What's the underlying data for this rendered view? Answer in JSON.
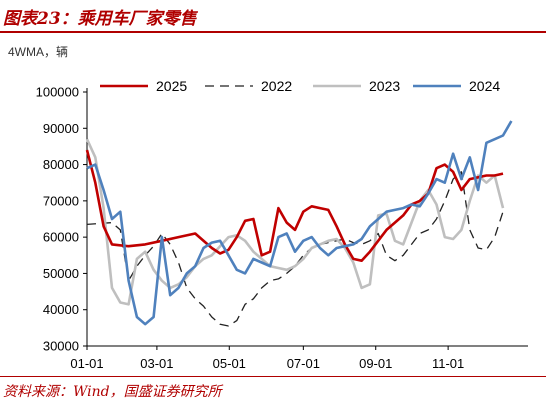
{
  "header": {
    "title": "图表23：乘用车厂家零售"
  },
  "footer": {
    "source": "资料来源：Wind，国盛证券研究所"
  },
  "chart_data": {
    "type": "line",
    "unit_label": "4WMA，辆",
    "ylim": [
      30000,
      100000
    ],
    "yticks": [
      30000,
      40000,
      50000,
      60000,
      70000,
      80000,
      90000,
      100000
    ],
    "xticks": [
      "01-01",
      "03-01",
      "05-01",
      "07-01",
      "09-01",
      "11-01"
    ],
    "xlim_weeks": [
      0,
      53
    ],
    "grid": false,
    "legend": "top",
    "colors": {
      "2025": "#c00000",
      "2022": "#222222",
      "2023": "#bfbfbf",
      "2024": "#4f81bd"
    },
    "series": [
      {
        "name": "2025",
        "style": "solid",
        "points": [
          [
            0,
            84000
          ],
          [
            1,
            75000
          ],
          [
            2,
            63000
          ],
          [
            3,
            58000
          ],
          [
            5,
            57500
          ],
          [
            7,
            58000
          ],
          [
            9,
            59000
          ],
          [
            11,
            60000
          ],
          [
            13,
            61000
          ],
          [
            15,
            57000
          ],
          [
            16,
            55500
          ],
          [
            17,
            56500
          ],
          [
            18,
            60000
          ],
          [
            19,
            64500
          ],
          [
            20,
            65000
          ],
          [
            21,
            55000
          ],
          [
            22,
            56000
          ],
          [
            23,
            68000
          ],
          [
            24,
            64000
          ],
          [
            25,
            62000
          ],
          [
            26,
            67000
          ],
          [
            27,
            68500
          ],
          [
            28,
            68000
          ],
          [
            29,
            67500
          ],
          [
            30,
            63000
          ],
          [
            31,
            58000
          ],
          [
            32,
            54000
          ],
          [
            33,
            53500
          ],
          [
            34,
            56000
          ],
          [
            35,
            59000
          ],
          [
            36,
            62000
          ],
          [
            37,
            64000
          ],
          [
            38,
            66000
          ],
          [
            39,
            69000
          ],
          [
            40,
            70000
          ],
          [
            41,
            72000
          ],
          [
            42,
            79000
          ],
          [
            43,
            80000
          ],
          [
            44,
            78000
          ],
          [
            45,
            73000
          ],
          [
            46,
            76000
          ],
          [
            47,
            76500
          ],
          [
            48,
            77000
          ],
          [
            49,
            77000
          ],
          [
            50,
            77500
          ]
        ]
      },
      {
        "name": "2022",
        "style": "dashed",
        "points": [
          [
            0,
            63500
          ],
          [
            3,
            64000
          ],
          [
            4,
            62000
          ],
          [
            5,
            48000
          ],
          [
            6,
            52000
          ],
          [
            7,
            55000
          ],
          [
            8,
            57500
          ],
          [
            9,
            61000
          ],
          [
            10,
            58000
          ],
          [
            11,
            53000
          ],
          [
            12,
            46000
          ],
          [
            13,
            43000
          ],
          [
            14,
            41000
          ],
          [
            15,
            38000
          ],
          [
            16,
            36000
          ],
          [
            17,
            35500
          ],
          [
            18,
            37000
          ],
          [
            19,
            41500
          ],
          [
            20,
            43000
          ],
          [
            21,
            46000
          ],
          [
            22,
            48000
          ],
          [
            23,
            48500
          ],
          [
            24,
            50000
          ],
          [
            25,
            52000
          ],
          [
            26,
            55000
          ],
          [
            27,
            57000
          ],
          [
            28,
            58000
          ],
          [
            29,
            58500
          ],
          [
            30,
            59000
          ],
          [
            31,
            59500
          ],
          [
            32,
            58500
          ],
          [
            33,
            58000
          ],
          [
            34,
            59000
          ],
          [
            35,
            61000
          ],
          [
            36,
            55000
          ],
          [
            37,
            53500
          ],
          [
            38,
            55000
          ],
          [
            39,
            58000
          ],
          [
            40,
            61000
          ],
          [
            41,
            62000
          ],
          [
            42,
            65000
          ],
          [
            43,
            70000
          ],
          [
            44,
            76000
          ],
          [
            45,
            78000
          ],
          [
            46,
            62000
          ],
          [
            47,
            57000
          ],
          [
            48,
            56500
          ],
          [
            49,
            60000
          ],
          [
            50,
            67000
          ]
        ]
      },
      {
        "name": "2023",
        "style": "solid",
        "points": [
          [
            0,
            87000
          ],
          [
            1,
            82000
          ],
          [
            2,
            68000
          ],
          [
            3,
            46000
          ],
          [
            4,
            42000
          ],
          [
            5,
            41500
          ],
          [
            6,
            54000
          ],
          [
            7,
            56000
          ],
          [
            8,
            51000
          ],
          [
            9,
            48000
          ],
          [
            10,
            46000
          ],
          [
            11,
            47000
          ],
          [
            12,
            49000
          ],
          [
            13,
            52000
          ],
          [
            14,
            54000
          ],
          [
            15,
            55000
          ],
          [
            16,
            57500
          ],
          [
            17,
            60000
          ],
          [
            18,
            60500
          ],
          [
            19,
            59000
          ],
          [
            20,
            56000
          ],
          [
            21,
            54000
          ],
          [
            22,
            52000
          ],
          [
            23,
            51500
          ],
          [
            24,
            51000
          ],
          [
            25,
            52000
          ],
          [
            26,
            54000
          ],
          [
            27,
            57000
          ],
          [
            28,
            58000
          ],
          [
            29,
            59000
          ],
          [
            30,
            59500
          ],
          [
            31,
            57000
          ],
          [
            32,
            53000
          ],
          [
            33,
            46000
          ],
          [
            34,
            47000
          ],
          [
            35,
            66000
          ],
          [
            36,
            66500
          ],
          [
            37,
            59000
          ],
          [
            38,
            58000
          ],
          [
            39,
            64000
          ],
          [
            40,
            70000
          ],
          [
            41,
            73000
          ],
          [
            42,
            69000
          ],
          [
            43,
            60000
          ],
          [
            44,
            59500
          ],
          [
            45,
            62000
          ],
          [
            46,
            70000
          ],
          [
            47,
            77000
          ],
          [
            48,
            75000
          ],
          [
            49,
            77000
          ],
          [
            50,
            68000
          ]
        ]
      },
      {
        "name": "2024",
        "style": "solid",
        "points": [
          [
            0,
            79000
          ],
          [
            1,
            80000
          ],
          [
            2,
            73000
          ],
          [
            3,
            65000
          ],
          [
            4,
            67000
          ],
          [
            5,
            48000
          ],
          [
            6,
            38000
          ],
          [
            7,
            36000
          ],
          [
            8,
            38000
          ],
          [
            9,
            60000
          ],
          [
            10,
            44000
          ],
          [
            11,
            46000
          ],
          [
            12,
            50000
          ],
          [
            13,
            52000
          ],
          [
            14,
            57000
          ],
          [
            15,
            58500
          ],
          [
            16,
            59000
          ],
          [
            17,
            55000
          ],
          [
            18,
            51000
          ],
          [
            19,
            50000
          ],
          [
            20,
            54000
          ],
          [
            21,
            53000
          ],
          [
            22,
            52000
          ],
          [
            23,
            60000
          ],
          [
            24,
            61000
          ],
          [
            25,
            56000
          ],
          [
            26,
            59000
          ],
          [
            27,
            60000
          ],
          [
            28,
            57000
          ],
          [
            29,
            55000
          ],
          [
            30,
            57000
          ],
          [
            31,
            57500
          ],
          [
            32,
            58000
          ],
          [
            33,
            59500
          ],
          [
            34,
            63000
          ],
          [
            35,
            65000
          ],
          [
            36,
            67000
          ],
          [
            37,
            67500
          ],
          [
            38,
            68000
          ],
          [
            39,
            69000
          ],
          [
            40,
            68500
          ],
          [
            41,
            72000
          ],
          [
            42,
            76000
          ],
          [
            43,
            75000
          ],
          [
            44,
            83000
          ],
          [
            45,
            76000
          ],
          [
            46,
            82000
          ],
          [
            47,
            73000
          ],
          [
            48,
            86000
          ],
          [
            49,
            87000
          ],
          [
            50,
            88000
          ],
          [
            51,
            92000
          ]
        ]
      }
    ]
  }
}
